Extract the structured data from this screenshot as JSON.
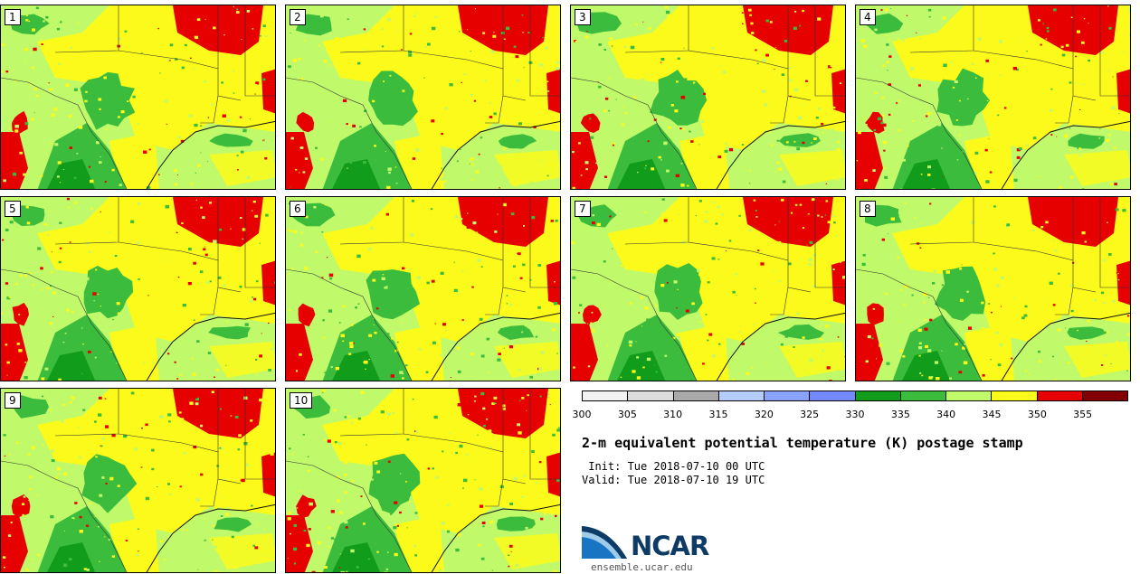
{
  "members": [
    {
      "label": "1"
    },
    {
      "label": "2"
    },
    {
      "label": "3"
    },
    {
      "label": "4"
    },
    {
      "label": "5"
    },
    {
      "label": "6"
    },
    {
      "label": "7"
    },
    {
      "label": "8"
    },
    {
      "label": "9"
    },
    {
      "label": "10"
    }
  ],
  "colorbar": {
    "colors": [
      "#f2f2f2",
      "#dcdcdc",
      "#a9a9a9",
      "#b4cdfa",
      "#8aa3fa",
      "#7388fa",
      "#129c1c",
      "#3cbc3c",
      "#c0fa6b",
      "#fcfa1a",
      "#e60000",
      "#820000"
    ],
    "ticks": [
      "300",
      "305",
      "310",
      "315",
      "320",
      "325",
      "330",
      "335",
      "340",
      "345",
      "350",
      "355"
    ]
  },
  "title": "2-m equivalent potential temperature (K) postage stamp",
  "init": " Init: Tue 2018-07-10 00 UTC",
  "valid": "Valid: Tue 2018-07-10 19 UTC",
  "logo": {
    "name": "NCAR",
    "url": "ensemble.ucar.edu"
  }
}
